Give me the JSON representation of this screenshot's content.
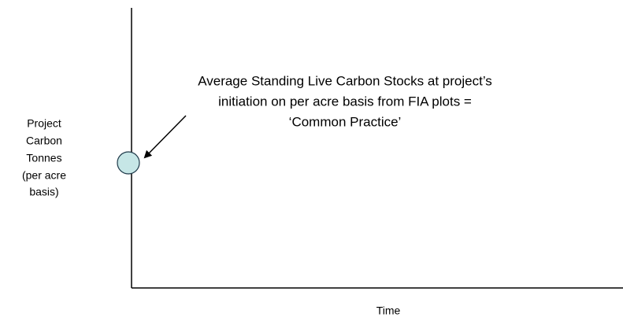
{
  "y_axis_label": [
    "Project",
    "Carbon",
    "Tonnes",
    "(per acre",
    "basis)"
  ],
  "x_axis_label": "Time",
  "annotation": [
    "Average Standing Live Carbon Stocks at project’s",
    "initiation on per acre basis from FIA plots =",
    "‘Common Practice’"
  ]
}
